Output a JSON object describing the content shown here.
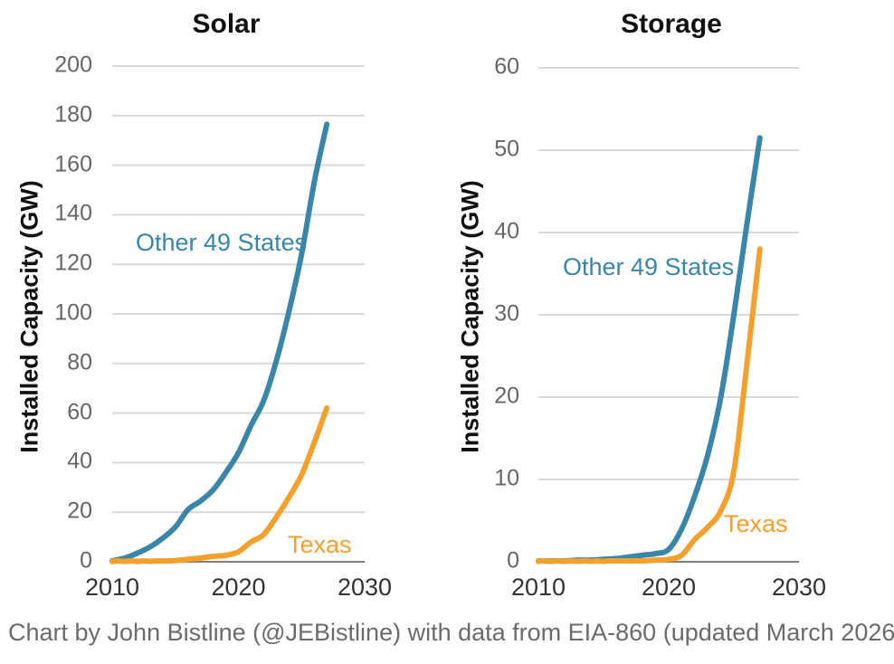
{
  "caption": "Chart by John Bistline (@JEBistline) with data from EIA-860 (updated March 2026)",
  "colors": {
    "blue": "#3a86a9",
    "orange": "#f4a02c",
    "gridline": "#d9d9d9",
    "axis_line": "#7f7f7f",
    "y_tick": "#666666",
    "x_tick": "#333333",
    "title": "#111111",
    "caption": "#6b6b6b"
  },
  "chart_data": [
    {
      "type": "line",
      "title": "Solar",
      "xlabel": "",
      "ylabel": "Installed Capacity (GW)",
      "x": [
        2010,
        2011,
        2012,
        2013,
        2014,
        2015,
        2016,
        2017,
        2018,
        2019,
        2020,
        2021,
        2022,
        2023,
        2024,
        2025,
        2026,
        2027
      ],
      "series": [
        {
          "name": "Other 49 States",
          "color": "#3a86a9",
          "values": [
            0.4,
            1.5,
            3.5,
            6,
            9.5,
            14,
            21,
            24.5,
            29,
            36,
            44,
            55,
            65,
            81,
            101,
            124,
            153,
            176.5
          ]
        },
        {
          "name": "Texas",
          "color": "#f4a02c",
          "values": [
            0.1,
            0.1,
            0.1,
            0.2,
            0.3,
            0.5,
            1,
            1.5,
            2.2,
            2.6,
            4,
            8,
            11,
            18,
            26,
            35,
            48,
            62
          ]
        }
      ],
      "xlim": [
        2010,
        2030
      ],
      "ylim": [
        0,
        200
      ],
      "y_ticks": [
        0,
        20,
        40,
        60,
        80,
        100,
        120,
        140,
        160,
        180,
        200
      ],
      "x_ticks": [
        2010,
        2020,
        2030
      ],
      "grid": true,
      "legend": "inline-annotations"
    },
    {
      "type": "line",
      "title": "Storage",
      "xlabel": "",
      "ylabel": "Installed Capacity (GW)",
      "x": [
        2010,
        2011,
        2012,
        2013,
        2014,
        2015,
        2016,
        2017,
        2018,
        2019,
        2020,
        2021,
        2022,
        2023,
        2024,
        2025,
        2026,
        2027
      ],
      "series": [
        {
          "name": "Other 49 States",
          "color": "#3a86a9",
          "values": [
            0.1,
            0.1,
            0.1,
            0.2,
            0.2,
            0.3,
            0.4,
            0.6,
            0.8,
            1.0,
            1.5,
            4,
            8,
            13,
            20,
            30,
            41,
            51.5
          ]
        },
        {
          "name": "Texas",
          "color": "#f4a02c",
          "values": [
            0.05,
            0.05,
            0.05,
            0.05,
            0.05,
            0.05,
            0.1,
            0.1,
            0.1,
            0.2,
            0.3,
            0.8,
            2.7,
            4.2,
            6.2,
            11,
            24,
            38
          ]
        }
      ],
      "xlim": [
        2010,
        2030
      ],
      "ylim": [
        0,
        60
      ],
      "y_ticks": [
        0,
        10,
        20,
        30,
        40,
        50,
        60
      ],
      "x_ticks": [
        2010,
        2020,
        2030
      ],
      "grid": true,
      "legend": "inline-annotations"
    }
  ]
}
